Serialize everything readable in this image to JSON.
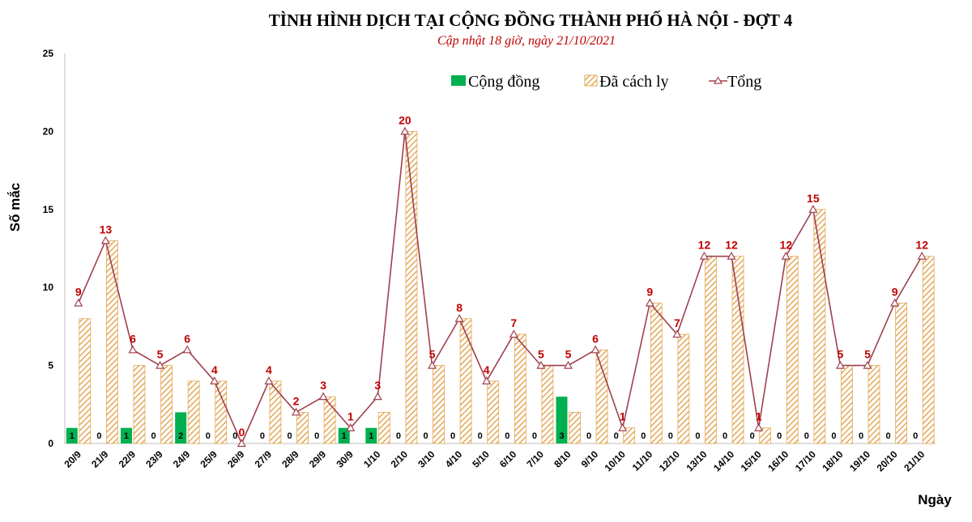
{
  "chart_data": {
    "type": "bar",
    "title": "TÌNH HÌNH DỊCH TẠI CỘNG ĐỒNG THÀNH PHỐ HÀ NỘI - ĐỢT 4",
    "subtitle": "Cập nhật 18 giờ, ngày 21/10/2021",
    "xlabel": "Ngày",
    "ylabel": "Số mắc",
    "ylim": [
      0,
      25
    ],
    "yticks": [
      0,
      5,
      10,
      15,
      20,
      25
    ],
    "grid": false,
    "legend_position": "top",
    "categories": [
      "20/9",
      "21/9",
      "22/9",
      "23/9",
      "24/9",
      "25/9",
      "26/9",
      "27/9",
      "28/9",
      "29/9",
      "30/9",
      "1/10",
      "2/10",
      "3/10",
      "4/10",
      "5/10",
      "6/10",
      "7/10",
      "8/10",
      "9/10",
      "10/10",
      "11/10",
      "12/10",
      "13/10",
      "14/10",
      "15/10",
      "16/10",
      "17/10",
      "18/10",
      "19/10",
      "20/10",
      "21/10"
    ],
    "series": [
      {
        "name": "Cộng đồng",
        "type": "bar",
        "color": "#00b050",
        "values": [
          1,
          0,
          1,
          0,
          2,
          0,
          0,
          0,
          0,
          0,
          1,
          1,
          0,
          0,
          0,
          0,
          0,
          0,
          3,
          0,
          0,
          0,
          0,
          0,
          0,
          0,
          0,
          0,
          0,
          0,
          0,
          0
        ]
      },
      {
        "name": "Đã cách ly",
        "type": "bar",
        "pattern": "hatched",
        "color": "#e3a857",
        "values": [
          8,
          13,
          5,
          5,
          4,
          4,
          0,
          4,
          2,
          3,
          0,
          2,
          20,
          5,
          8,
          4,
          7,
          5,
          2,
          6,
          1,
          9,
          7,
          12,
          12,
          1,
          12,
          15,
          5,
          5,
          9,
          12
        ]
      },
      {
        "name": "Tổng",
        "type": "line",
        "color": "#a0404f",
        "values": [
          9,
          13,
          6,
          5,
          6,
          4,
          0,
          4,
          2,
          3,
          1,
          3,
          20,
          5,
          8,
          4,
          7,
          5,
          5,
          6,
          1,
          9,
          7,
          12,
          12,
          1,
          12,
          15,
          5,
          5,
          9,
          12
        ]
      }
    ]
  }
}
